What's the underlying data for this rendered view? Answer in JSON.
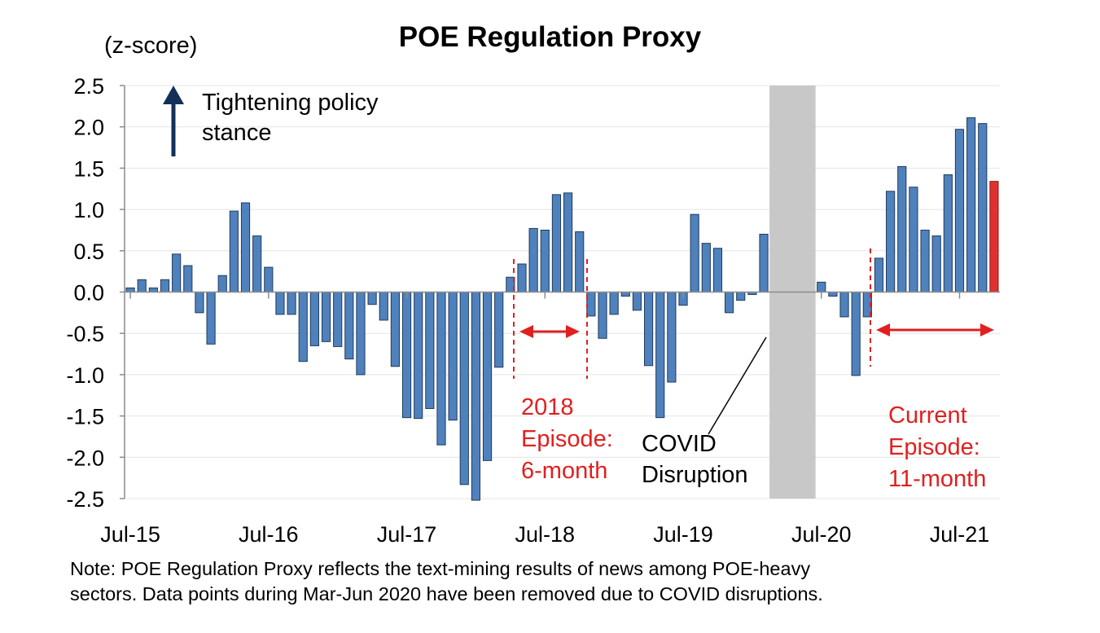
{
  "chart_data": {
    "type": "bar",
    "title": "POE Regulation Proxy",
    "ylabel": "(z-score)",
    "ylim": [
      -2.5,
      2.5
    ],
    "yticks": [
      "2.5",
      "2.0",
      "1.5",
      "1.0",
      "0.5",
      "0.0",
      "-0.5",
      "-1.0",
      "-1.5",
      "-2.0",
      "-2.5"
    ],
    "xtick_labels": [
      "Jul-15",
      "Jul-16",
      "Jul-17",
      "Jul-18",
      "Jul-19",
      "Jul-20",
      "Jul-21"
    ],
    "start_month": "Jul-15",
    "bar_color": "#4f81bd",
    "highlight_color": "#e03030",
    "values": [
      0.05,
      0.15,
      0.05,
      0.15,
      0.46,
      0.32,
      -0.25,
      -0.63,
      0.2,
      0.98,
      1.08,
      0.68,
      0.3,
      -0.27,
      -0.27,
      -0.84,
      -0.65,
      -0.6,
      -0.66,
      -0.81,
      -1.0,
      -0.15,
      -0.34,
      -0.9,
      -1.52,
      -1.53,
      -1.41,
      -1.85,
      -1.55,
      -2.33,
      -2.52,
      -2.04,
      -0.91,
      0.18,
      0.34,
      0.77,
      0.75,
      1.18,
      1.2,
      0.73,
      -0.29,
      -0.56,
      -0.27,
      -0.05,
      -0.22,
      -0.89,
      -1.52,
      -1.09,
      -0.16,
      0.94,
      0.59,
      0.53,
      -0.25,
      -0.1,
      -0.03,
      0.7,
      null,
      null,
      null,
      null,
      0.12,
      -0.05,
      -0.3,
      -1.01,
      -0.3,
      0.41,
      1.22,
      1.52,
      1.27,
      0.75,
      0.68,
      1.42,
      1.97,
      2.11,
      2.04,
      1.34
    ],
    "highlight_last": true,
    "shaded_region": {
      "label": "COVID Disruption",
      "from_month": "Mar-20",
      "to_month": "Jun-20"
    },
    "annotations": {
      "tightening_line1": "Tightening policy",
      "tightening_line2": "stance",
      "covid_line1": "COVID",
      "covid_line2": "Disruption",
      "episode2018_line1": "2018",
      "episode2018_line2": "Episode:",
      "episode2018_line3": "6-month",
      "current_line1": "Current",
      "current_line2": "Episode:",
      "current_line3": "11-month"
    }
  },
  "note_line1": "Note: POE Regulation Proxy reflects the text-mining results of news among POE-heavy",
  "note_line2": "sectors. Data points during Mar-Jun 2020 have  been removed due to COVID disruptions."
}
